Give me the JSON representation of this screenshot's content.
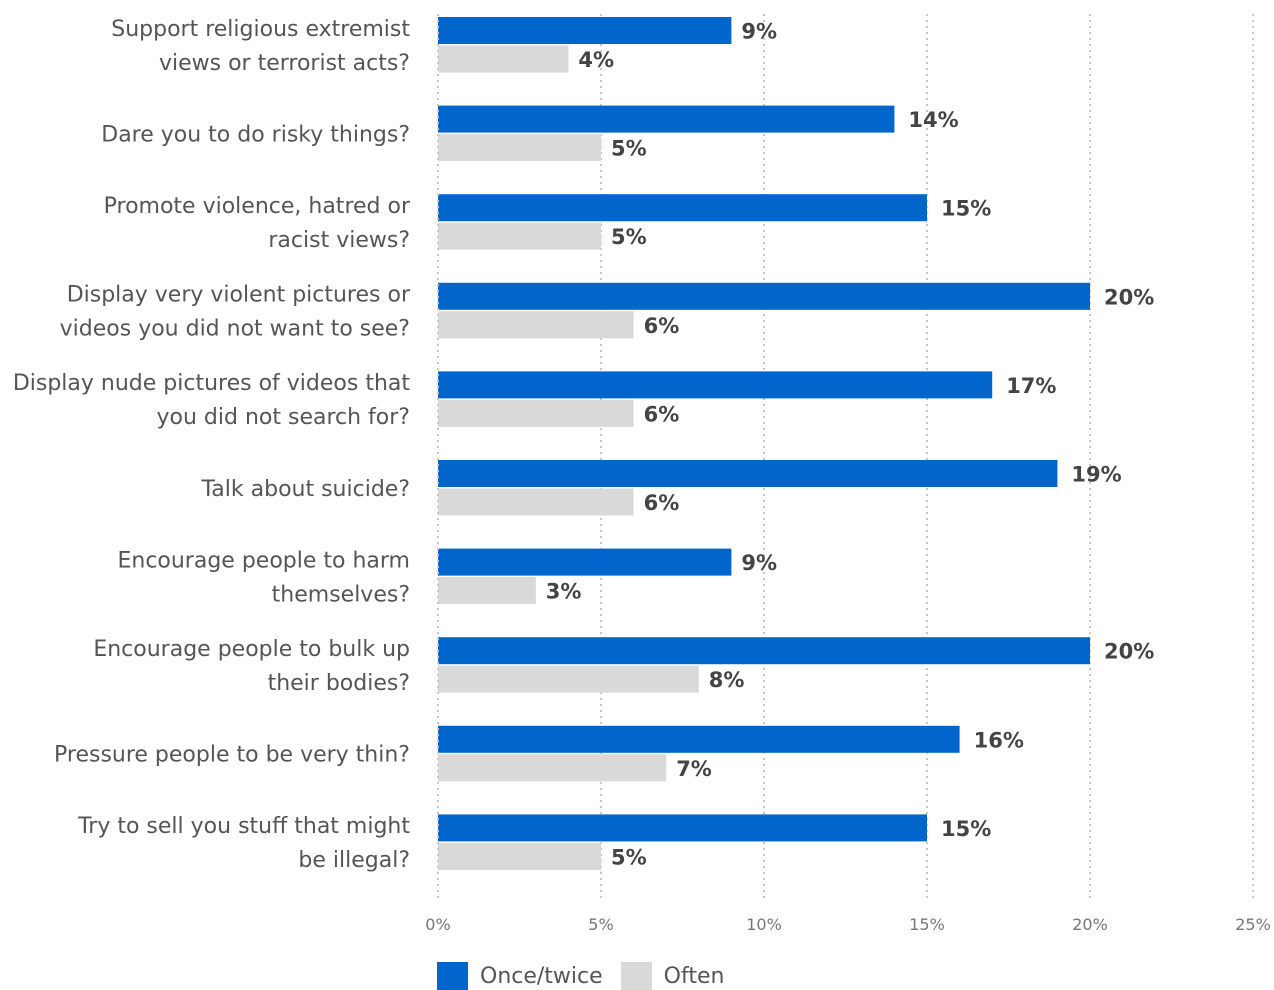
{
  "chart_data": {
    "type": "bar",
    "orientation": "horizontal",
    "categories": [
      "Support religious extremist\nviews or terrorist acts?",
      "Dare you to do risky things?",
      "Promote violence, hatred or\nracist views?",
      "Display very violent pictures or\nvideos you did not want to see?",
      "Display nude pictures of videos that\nyou did not search for?",
      "Talk about suicide?",
      "Encourage people to harm\nthemselves?",
      "Encourage people to bulk up\ntheir bodies?",
      "Pressure people to be very thin?",
      "Try to sell you stuff that might\nbe illegal?"
    ],
    "series": [
      {
        "name": "Once/twice",
        "color": "#0066cc",
        "values": [
          9,
          14,
          15,
          20,
          17,
          19,
          9,
          20,
          16,
          15
        ]
      },
      {
        "name": "Often",
        "color": "#d9d9d9",
        "values": [
          4,
          5,
          5,
          6,
          6,
          6,
          3,
          8,
          7,
          5
        ]
      }
    ],
    "value_suffix": "%",
    "xlim": [
      0,
      25
    ],
    "xticks": [
      0,
      5,
      10,
      15,
      20,
      25
    ],
    "xtick_labels": [
      "0%",
      "5%",
      "10%",
      "15%",
      "20%",
      "25%"
    ],
    "grid": "vertical dotted",
    "legend_position": "bottom-left"
  }
}
